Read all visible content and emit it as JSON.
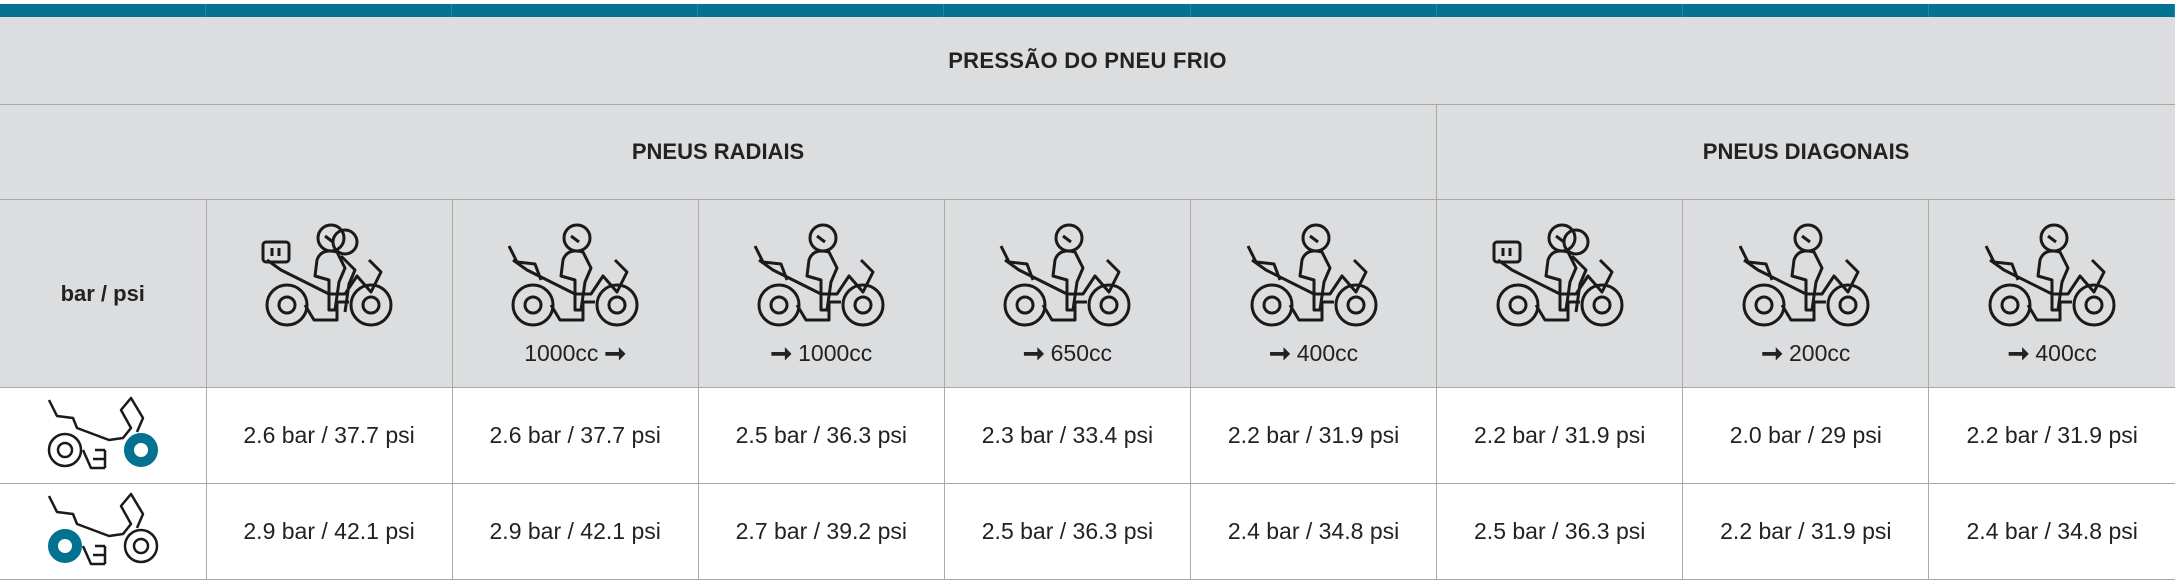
{
  "title": "PRESSÃO DO PNEU FRIO",
  "groups": {
    "radial": "PNEUS RADIAIS",
    "diagonal": "PNEUS DIAGONAIS"
  },
  "unit_header": "bar / psi",
  "accent_color": "#037290",
  "columns": [
    {
      "icon": "motorcycle-two-riders-luggage-icon",
      "cc": "",
      "arrow": ""
    },
    {
      "icon": "motorcycle-rider-icon",
      "cc": "1000cc",
      "arrow": "after"
    },
    {
      "icon": "motorcycle-rider-icon",
      "cc": "1000cc",
      "arrow": "before"
    },
    {
      "icon": "motorcycle-rider-icon",
      "cc": "650cc",
      "arrow": "before"
    },
    {
      "icon": "motorcycle-rider-icon",
      "cc": "400cc",
      "arrow": "before"
    },
    {
      "icon": "motorcycle-two-riders-luggage-icon",
      "cc": "",
      "arrow": ""
    },
    {
      "icon": "motorcycle-rider-icon",
      "cc": "200cc",
      "arrow": "before"
    },
    {
      "icon": "motorcycle-rider-icon",
      "cc": "400cc",
      "arrow": "before"
    }
  ],
  "rows": [
    {
      "icon": "front-tire-icon",
      "values": [
        "2.6 bar / 37.7 psi",
        "2.6 bar / 37.7 psi",
        "2.5 bar / 36.3 psi",
        "2.3 bar / 33.4 psi",
        "2.2 bar / 31.9 psi",
        "2.2 bar / 31.9 psi",
        "2.0 bar / 29 psi",
        "2.2 bar / 31.9 psi"
      ]
    },
    {
      "icon": "rear-tire-icon",
      "values": [
        "2.9 bar / 42.1 psi",
        "2.9 bar / 42.1 psi",
        "2.7 bar / 39.2 psi",
        "2.5 bar / 36.3 psi",
        "2.4 bar / 34.8 psi",
        "2.5 bar / 36.3 psi",
        "2.2 bar / 31.9 psi",
        "2.4 bar / 34.8 psi"
      ]
    }
  ]
}
